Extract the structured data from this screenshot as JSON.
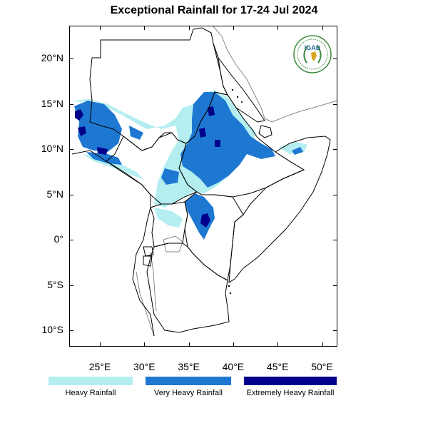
{
  "title": "Exceptional Rainfall for 17-24 Jul 2024",
  "logo_text": "IGAD",
  "y_ticks": [
    {
      "label": "20°N",
      "lat": 20
    },
    {
      "label": "15°N",
      "lat": 15
    },
    {
      "label": "10°N",
      "lat": 10
    },
    {
      "label": "5°N",
      "lat": 5
    },
    {
      "label": "0°",
      "lat": 0
    },
    {
      "label": "5°S",
      "lat": -5
    },
    {
      "label": "10°S",
      "lat": -10
    }
  ],
  "x_ticks": [
    {
      "label": "25°E",
      "lon": 25
    },
    {
      "label": "30°E",
      "lon": 30
    },
    {
      "label": "35°E",
      "lon": 35
    },
    {
      "label": "40°E",
      "lon": 40
    },
    {
      "label": "45°E",
      "lon": 45
    },
    {
      "label": "50°E",
      "lon": 50
    }
  ],
  "legend": [
    {
      "label": "Heavy Rainfall",
      "color": "#b4eef0"
    },
    {
      "label": "Very Heavy Rainfall",
      "color": "#1e78d2"
    },
    {
      "label": "Extremely Heavy Rainfall",
      "color": "#00008c"
    }
  ],
  "colors": {
    "heavy": "#b4eef0",
    "very_heavy": "#1e78d2",
    "extreme": "#00008c",
    "border": "#000000",
    "coast": "#888888"
  }
}
